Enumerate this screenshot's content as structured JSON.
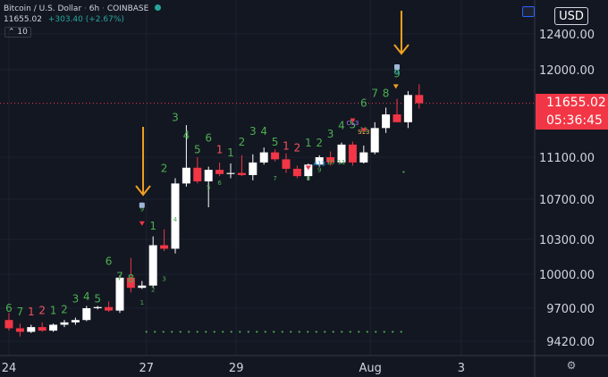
{
  "header": {
    "symbol": "Bitcoin / U.S. Dollar",
    "interval": "6h",
    "exchange": "COINBASE",
    "last_price": "11655.02",
    "change": "+303.40 (+2.67%)",
    "indicator_count": "10"
  },
  "currency_button": "USD",
  "price_label": {
    "price": "11655.02",
    "countdown": "05:36:45"
  },
  "colors": {
    "background": "#131722",
    "up": "#ffffff",
    "down": "#f23645",
    "count_green": "#4caf50",
    "count_red": "#f7525f",
    "arrow": "#f0a020",
    "grid": "#1e2230",
    "axis_text": "#d1d4dc"
  },
  "icons": {
    "settings": "gear-icon",
    "chart-style": "candle-icon"
  },
  "chart_data": {
    "type": "candlestick",
    "symbol": "Bitcoin / U.S. Dollar",
    "interval": "6h",
    "y_ticks": [
      12400,
      12000,
      11100,
      10700,
      10300,
      10000,
      9700,
      9420
    ],
    "x_ticks": [
      {
        "label": "24",
        "bar": 0
      },
      {
        "label": "27",
        "bar": 12.4
      },
      {
        "label": "29",
        "bar": 20.5
      },
      {
        "label": "Aug",
        "bar": 32.6
      },
      {
        "label": "3",
        "bar": 40.8
      }
    ],
    "last_price": 11655.02,
    "candles": [
      {
        "o": 9600,
        "h": 9660,
        "l": 9510,
        "c": 9530
      },
      {
        "o": 9530,
        "h": 9570,
        "l": 9460,
        "c": 9500
      },
      {
        "o": 9500,
        "h": 9560,
        "l": 9490,
        "c": 9540
      },
      {
        "o": 9540,
        "h": 9580,
        "l": 9500,
        "c": 9510
      },
      {
        "o": 9510,
        "h": 9570,
        "l": 9500,
        "c": 9560
      },
      {
        "o": 9560,
        "h": 9600,
        "l": 9540,
        "c": 9580
      },
      {
        "o": 9580,
        "h": 9620,
        "l": 9560,
        "c": 9600
      },
      {
        "o": 9600,
        "h": 9720,
        "l": 9590,
        "c": 9700
      },
      {
        "o": 9700,
        "h": 9720,
        "l": 9690,
        "c": 9710
      },
      {
        "o": 9710,
        "h": 9760,
        "l": 9670,
        "c": 9680
      },
      {
        "o": 9680,
        "h": 9990,
        "l": 9660,
        "c": 9970
      },
      {
        "o": 9970,
        "h": 10140,
        "l": 9840,
        "c": 9880
      },
      {
        "o": 9880,
        "h": 9940,
        "l": 9870,
        "c": 9900
      },
      {
        "o": 9900,
        "h": 10330,
        "l": 9880,
        "c": 10250
      },
      {
        "o": 10250,
        "h": 10400,
        "l": 10200,
        "c": 10220
      },
      {
        "o": 10220,
        "h": 10900,
        "l": 10180,
        "c": 10850
      },
      {
        "o": 10850,
        "h": 11430,
        "l": 10820,
        "c": 11000
      },
      {
        "o": 11000,
        "h": 11100,
        "l": 10850,
        "c": 10870
      },
      {
        "o": 10870,
        "h": 11010,
        "l": 10620,
        "c": 10980
      },
      {
        "o": 10980,
        "h": 11050,
        "l": 10920,
        "c": 10940
      },
      {
        "o": 10940,
        "h": 11040,
        "l": 10900,
        "c": 10950
      },
      {
        "o": 10950,
        "h": 11120,
        "l": 10920,
        "c": 10930
      },
      {
        "o": 10930,
        "h": 11130,
        "l": 10880,
        "c": 11050
      },
      {
        "o": 11050,
        "h": 11200,
        "l": 11030,
        "c": 11150
      },
      {
        "o": 11150,
        "h": 11180,
        "l": 11060,
        "c": 11080
      },
      {
        "o": 11080,
        "h": 11140,
        "l": 10950,
        "c": 10990
      },
      {
        "o": 10990,
        "h": 11020,
        "l": 10900,
        "c": 10920
      },
      {
        "o": 10920,
        "h": 11040,
        "l": 10880,
        "c": 11030
      },
      {
        "o": 11030,
        "h": 11120,
        "l": 11010,
        "c": 11100
      },
      {
        "o": 11100,
        "h": 11160,
        "l": 11020,
        "c": 11050
      },
      {
        "o": 11050,
        "h": 11250,
        "l": 11040,
        "c": 11230
      },
      {
        "o": 11230,
        "h": 11260,
        "l": 11020,
        "c": 11050
      },
      {
        "o": 11050,
        "h": 11220,
        "l": 11040,
        "c": 11150
      },
      {
        "o": 11150,
        "h": 11460,
        "l": 11130,
        "c": 11400
      },
      {
        "o": 11400,
        "h": 11610,
        "l": 11350,
        "c": 11540
      },
      {
        "o": 11540,
        "h": 11700,
        "l": 11480,
        "c": 11460
      },
      {
        "o": 11460,
        "h": 11780,
        "l": 11400,
        "c": 11740
      },
      {
        "o": 11740,
        "h": 11850,
        "l": 11600,
        "c": 11655
      }
    ]
  },
  "setup_counts": [
    {
      "text": "6",
      "bar": 0,
      "price": 9670,
      "color": "green"
    },
    {
      "text": "7",
      "bar": 1,
      "price": 9640,
      "color": "green"
    },
    {
      "text": "1",
      "bar": 2,
      "price": 9640,
      "color": "red"
    },
    {
      "text": "2",
      "bar": 3,
      "price": 9650,
      "color": "red"
    },
    {
      "text": "1",
      "bar": 4,
      "price": 9650,
      "color": "green"
    },
    {
      "text": "2",
      "bar": 5,
      "price": 9660,
      "color": "green"
    },
    {
      "text": "3",
      "bar": 6,
      "price": 9750,
      "color": "green"
    },
    {
      "text": "4",
      "bar": 7,
      "price": 9770,
      "color": "green"
    },
    {
      "text": "5",
      "bar": 8,
      "price": 9750,
      "color": "green"
    },
    {
      "text": "6",
      "bar": 9,
      "price": 10080,
      "color": "green"
    },
    {
      "text": "7",
      "bar": 10,
      "price": 9950,
      "color": "green"
    },
    {
      "text": "8",
      "bar": 11,
      "price": 9930,
      "color": "green"
    },
    {
      "text": "1",
      "bar": 13,
      "price": 10400,
      "color": "green"
    },
    {
      "text": "2",
      "bar": 14,
      "price": 10960,
      "color": "green"
    },
    {
      "text": "3",
      "bar": 15,
      "price": 11470,
      "color": "green"
    },
    {
      "text": "4",
      "bar": 16,
      "price": 11290,
      "color": "green"
    },
    {
      "text": "5",
      "bar": 17,
      "price": 11140,
      "color": "green"
    },
    {
      "text": "6",
      "bar": 18,
      "price": 11260,
      "color": "green"
    },
    {
      "text": "1",
      "bar": 19,
      "price": 11140,
      "color": "red"
    },
    {
      "text": "1",
      "bar": 20,
      "price": 11110,
      "color": "green"
    },
    {
      "text": "2",
      "bar": 21,
      "price": 11220,
      "color": "green"
    },
    {
      "text": "3",
      "bar": 22,
      "price": 11330,
      "color": "green"
    },
    {
      "text": "4",
      "bar": 23,
      "price": 11330,
      "color": "green"
    },
    {
      "text": "5",
      "bar": 24,
      "price": 11220,
      "color": "green"
    },
    {
      "text": "1",
      "bar": 25,
      "price": 11180,
      "color": "red"
    },
    {
      "text": "2",
      "bar": 26,
      "price": 11160,
      "color": "red"
    },
    {
      "text": "1",
      "bar": 27,
      "price": 11210,
      "color": "green"
    },
    {
      "text": "2",
      "bar": 28,
      "price": 11210,
      "color": "green"
    },
    {
      "text": "3",
      "bar": 29,
      "price": 11300,
      "color": "green"
    },
    {
      "text": "4",
      "bar": 30,
      "price": 11390,
      "color": "green"
    },
    {
      "text": "5",
      "bar": 31,
      "price": 11400,
      "color": "green"
    },
    {
      "text": "6",
      "bar": 32,
      "price": 11620,
      "color": "green"
    },
    {
      "text": "7",
      "bar": 33,
      "price": 11720,
      "color": "green"
    },
    {
      "text": "8",
      "bar": 34,
      "price": 11720,
      "color": "green"
    },
    {
      "text": "9",
      "bar": 35,
      "price": 11920,
      "color": "green"
    }
  ],
  "countdown_labels": [
    {
      "text": "1",
      "bar": 12,
      "price": 9730,
      "color": "green"
    },
    {
      "text": "2",
      "bar": 13,
      "price": 9845,
      "color": "green"
    },
    {
      "text": "3",
      "bar": 14,
      "price": 9940,
      "color": "green"
    },
    {
      "text": "4",
      "bar": 15,
      "price": 10480,
      "color": "green"
    },
    {
      "text": "5",
      "bar": 18,
      "price": 10795,
      "color": "green"
    },
    {
      "text": "6",
      "bar": 19,
      "price": 10835,
      "color": "green"
    },
    {
      "text": "7",
      "bar": 24,
      "price": 10880,
      "color": "green"
    },
    {
      "text": "8",
      "bar": 27,
      "price": 10880,
      "color": "green"
    },
    {
      "text": "9",
      "bar": 28,
      "price": 10960,
      "color": "green"
    },
    {
      "text": "A13",
      "bar": 28,
      "price": 11020,
      "color": "blue"
    },
    {
      "text": "10",
      "bar": 29,
      "price": 11030,
      "color": "green"
    },
    {
      "text": "11",
      "bar": 30,
      "price": 11030,
      "color": "green"
    },
    {
      "text": "12",
      "bar": 32,
      "price": 11360,
      "color": "green"
    },
    {
      "text": "C13",
      "bar": 31,
      "price": 11430,
      "color": "purple"
    },
    {
      "text": "S13",
      "bar": 32,
      "price": 11340,
      "color": "orange"
    },
    {
      "text": "9",
      "bar": 12,
      "price": 10580,
      "color": "green"
    },
    {
      "text": "9",
      "bar": 35,
      "price": 11950,
      "color": "blue"
    }
  ]
}
